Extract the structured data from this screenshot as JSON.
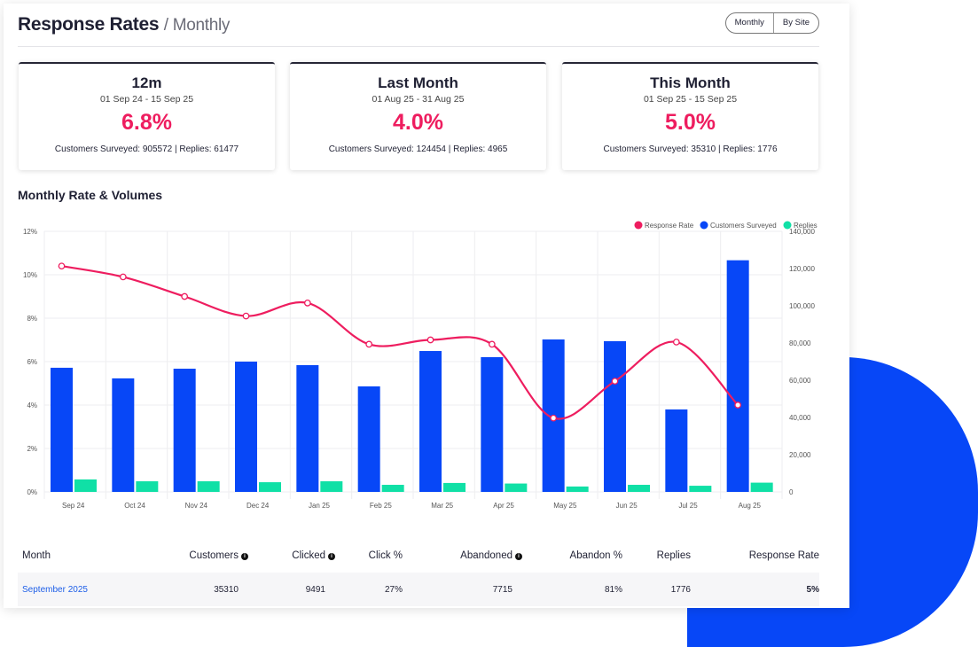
{
  "header": {
    "title": "Response Rates",
    "subtitle": "/ Monthly",
    "toggle": [
      "Monthly",
      "By Site"
    ]
  },
  "cards": [
    {
      "title": "12m",
      "dates": "01 Sep 24 - 15 Sep 25",
      "rate": "6.8%",
      "summary": "Customers Surveyed: 905572 | Replies: 61477"
    },
    {
      "title": "Last Month",
      "dates": "01 Aug 25 - 31 Aug 25",
      "rate": "4.0%",
      "summary": "Customers Surveyed: 124454 | Replies: 4965"
    },
    {
      "title": "This Month",
      "dates": "01 Sep 25 - 15 Sep 25",
      "rate": "5.0%",
      "summary": "Customers Surveyed: 35310 | Replies: 1776"
    }
  ],
  "section_title": "Monthly Rate & Volumes",
  "colors": {
    "rate": "#ee1d5f",
    "customers": "#0747f7",
    "replies": "#10e0a6"
  },
  "chart_data": {
    "type": "bar+line",
    "categories": [
      "Sep 24",
      "Oct 24",
      "Nov 24",
      "Dec 24",
      "Jan 25",
      "Feb 25",
      "Mar 25",
      "Apr 25",
      "May 25",
      "Jun 25",
      "Jul 25",
      "Aug 25"
    ],
    "series": [
      {
        "name": "Response Rate",
        "type": "line",
        "axis": "left",
        "values": [
          10.4,
          9.9,
          9.0,
          8.1,
          8.7,
          6.8,
          7.0,
          6.8,
          3.4,
          5.1,
          6.9,
          4.0
        ]
      },
      {
        "name": "Customers Surveyed",
        "type": "bar",
        "axis": "right",
        "values": [
          66700,
          61000,
          66200,
          70000,
          68100,
          56700,
          75700,
          72400,
          81900,
          81000,
          44300,
          124454
        ]
      },
      {
        "name": "Replies",
        "type": "bar",
        "axis": "right",
        "values": [
          6700,
          5700,
          5700,
          5200,
          5700,
          3800,
          4800,
          4500,
          2900,
          3800,
          3300,
          4965
        ]
      }
    ],
    "left_axis": {
      "ticks": [
        "0%",
        "2%",
        "4%",
        "6%",
        "8%",
        "10%",
        "12%"
      ],
      "range": [
        0,
        12
      ]
    },
    "right_axis": {
      "ticks": [
        "0",
        "20,000",
        "40,000",
        "60,000",
        "80,000",
        "100,000",
        "120,000",
        "140,000"
      ],
      "range": [
        0,
        140000
      ]
    },
    "legend": "top-right",
    "grid": true
  },
  "table": {
    "headers": [
      "Month",
      "Customers",
      "Clicked",
      "Click %",
      "Abandoned",
      "Abandon %",
      "Replies",
      "Response Rate"
    ],
    "rows": [
      [
        "September 2025",
        "35310",
        "9491",
        "27%",
        "7715",
        "81%",
        "1776",
        "5%"
      ]
    ]
  }
}
